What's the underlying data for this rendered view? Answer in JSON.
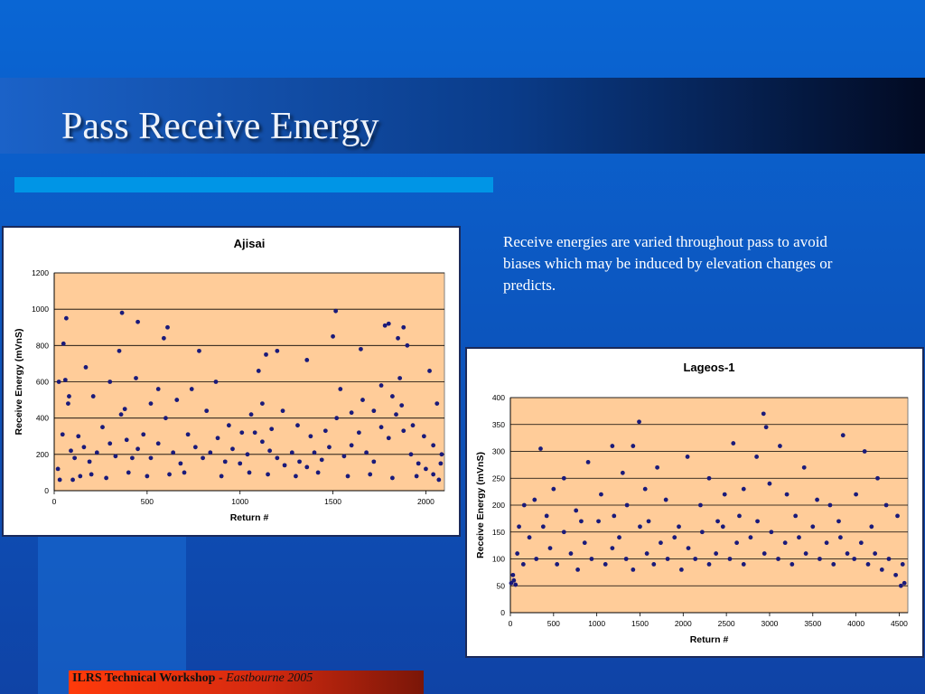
{
  "slide": {
    "title": "Pass Receive Energy",
    "body": "Receive energies are varied throughout pass to avoid biases which may be induced by elevation changes or predicts.",
    "footer_bold": "ILRS Technical Workshop - ",
    "footer_italic": "Eastbourne 2005"
  },
  "colors": {
    "background": "#1056b8",
    "plot_area": "#ffcc99",
    "marker": "#1a1a7a",
    "accent_bar": "#0095e6",
    "footer": "#e8300c"
  },
  "chart_data": [
    {
      "id": "ajisai",
      "type": "scatter",
      "title": "Ajisai",
      "xlabel": "Return #",
      "ylabel": "Receive Energy (mVnS)",
      "xlim": [
        0,
        2100
      ],
      "ylim": [
        0,
        1200
      ],
      "xticks": [
        0,
        500,
        1000,
        1500,
        2000
      ],
      "yticks": [
        0,
        200,
        400,
        600,
        800,
        1000,
        1200
      ],
      "grid": "horizontal",
      "legend": "none",
      "series": [
        {
          "points_note": "",
          "points": [
            [
              20,
              120
            ],
            [
              45,
              310
            ],
            [
              60,
              610
            ],
            [
              75,
              480
            ],
            [
              90,
              220
            ],
            [
              110,
              180
            ],
            [
              130,
              300
            ],
            [
              160,
              240
            ],
            [
              190,
              160
            ],
            [
              230,
              210
            ],
            [
              260,
              350
            ],
            [
              300,
              260
            ],
            [
              330,
              190
            ],
            [
              360,
              420
            ],
            [
              390,
              280
            ],
            [
              420,
              180
            ],
            [
              450,
              230
            ],
            [
              480,
              310
            ],
            [
              520,
              180
            ],
            [
              560,
              260
            ],
            [
              600,
              400
            ],
            [
              640,
              210
            ],
            [
              680,
              150
            ],
            [
              720,
              310
            ],
            [
              760,
              240
            ],
            [
              800,
              180
            ],
            [
              840,
              210
            ],
            [
              880,
              290
            ],
            [
              920,
              160
            ],
            [
              960,
              230
            ],
            [
              1000,
              150
            ],
            [
              1040,
              200
            ],
            [
              1080,
              320
            ],
            [
              1120,
              270
            ],
            [
              1160,
              220
            ],
            [
              1200,
              180
            ],
            [
              1240,
              140
            ],
            [
              1280,
              210
            ],
            [
              1320,
              160
            ],
            [
              1360,
              130
            ],
            [
              1400,
              210
            ],
            [
              1440,
              170
            ],
            [
              1480,
              240
            ],
            [
              1520,
              400
            ],
            [
              1560,
              190
            ],
            [
              1600,
              250
            ],
            [
              1640,
              320
            ],
            [
              1680,
              210
            ],
            [
              1720,
              160
            ],
            [
              1760,
              350
            ],
            [
              1800,
              290
            ],
            [
              1840,
              420
            ],
            [
              1880,
              330
            ],
            [
              1920,
              200
            ],
            [
              1960,
              150
            ],
            [
              2000,
              120
            ],
            [
              2040,
              90
            ],
            [
              2080,
              150
            ],
            [
              25,
              600
            ],
            [
              50,
              810
            ],
            [
              65,
              950
            ],
            [
              170,
              680
            ],
            [
              350,
              770
            ],
            [
              365,
              980
            ],
            [
              450,
              930
            ],
            [
              590,
              840
            ],
            [
              610,
              900
            ],
            [
              780,
              770
            ],
            [
              1100,
              660
            ],
            [
              1140,
              750
            ],
            [
              1200,
              770
            ],
            [
              1360,
              720
            ],
            [
              1500,
              850
            ],
            [
              1515,
              990
            ],
            [
              1650,
              780
            ],
            [
              1780,
              910
            ],
            [
              1800,
              920
            ],
            [
              1850,
              840
            ],
            [
              1860,
              620
            ],
            [
              1880,
              900
            ],
            [
              1900,
              800
            ],
            [
              2020,
              660
            ],
            [
              2060,
              480
            ],
            [
              30,
              60
            ],
            [
              100,
              60
            ],
            [
              140,
              80
            ],
            [
              200,
              90
            ],
            [
              280,
              70
            ],
            [
              400,
              100
            ],
            [
              500,
              80
            ],
            [
              620,
              90
            ],
            [
              700,
              100
            ],
            [
              900,
              80
            ],
            [
              1050,
              100
            ],
            [
              1150,
              90
            ],
            [
              1300,
              80
            ],
            [
              1420,
              100
            ],
            [
              1580,
              80
            ],
            [
              1700,
              90
            ],
            [
              1820,
              70
            ],
            [
              1950,
              80
            ],
            [
              2070,
              60
            ],
            [
              80,
              520
            ],
            [
              210,
              520
            ],
            [
              300,
              600
            ],
            [
              380,
              450
            ],
            [
              440,
              620
            ],
            [
              520,
              480
            ],
            [
              560,
              560
            ],
            [
              660,
              500
            ],
            [
              740,
              560
            ],
            [
              820,
              440
            ],
            [
              870,
              600
            ],
            [
              940,
              360
            ],
            [
              1010,
              320
            ],
            [
              1060,
              420
            ],
            [
              1120,
              480
            ],
            [
              1170,
              340
            ],
            [
              1230,
              440
            ],
            [
              1310,
              360
            ],
            [
              1380,
              300
            ],
            [
              1460,
              330
            ],
            [
              1540,
              560
            ],
            [
              1600,
              430
            ],
            [
              1660,
              500
            ],
            [
              1720,
              440
            ],
            [
              1760,
              580
            ],
            [
              1820,
              520
            ],
            [
              1870,
              470
            ],
            [
              1930,
              360
            ],
            [
              1990,
              300
            ],
            [
              2040,
              250
            ],
            [
              2085,
              200
            ]
          ]
        }
      ]
    },
    {
      "id": "lageos1",
      "type": "scatter",
      "title": "Lageos-1",
      "xlabel": "Return #",
      "ylabel": "Receive Energy (mVnS)",
      "xlim": [
        0,
        4600
      ],
      "ylim": [
        0,
        400
      ],
      "xticks": [
        0,
        500,
        1000,
        1500,
        2000,
        2500,
        3000,
        3500,
        4000,
        4500
      ],
      "yticks": [
        0,
        50,
        100,
        150,
        200,
        250,
        300,
        350,
        400
      ],
      "grid": "horizontal",
      "legend": "none",
      "series": [
        {
          "points_note": "",
          "points": [
            [
              30,
              70
            ],
            [
              80,
              110
            ],
            [
              150,
              90
            ],
            [
              220,
              140
            ],
            [
              300,
              100
            ],
            [
              380,
              160
            ],
            [
              460,
              120
            ],
            [
              540,
              90
            ],
            [
              620,
              150
            ],
            [
              700,
              110
            ],
            [
              780,
              80
            ],
            [
              860,
              130
            ],
            [
              940,
              100
            ],
            [
              1020,
              170
            ],
            [
              1100,
              90
            ],
            [
              1180,
              120
            ],
            [
              1260,
              140
            ],
            [
              1340,
              100
            ],
            [
              1420,
              80
            ],
            [
              1500,
              160
            ],
            [
              1580,
              110
            ],
            [
              1660,
              90
            ],
            [
              1740,
              130
            ],
            [
              1820,
              100
            ],
            [
              1900,
              140
            ],
            [
              1980,
              80
            ],
            [
              2060,
              120
            ],
            [
              2140,
              100
            ],
            [
              2220,
              150
            ],
            [
              2300,
              90
            ],
            [
              2380,
              110
            ],
            [
              2460,
              160
            ],
            [
              2540,
              100
            ],
            [
              2620,
              130
            ],
            [
              2700,
              90
            ],
            [
              2780,
              140
            ],
            [
              2860,
              170
            ],
            [
              2940,
              110
            ],
            [
              3020,
              150
            ],
            [
              3100,
              100
            ],
            [
              3180,
              130
            ],
            [
              3260,
              90
            ],
            [
              3340,
              140
            ],
            [
              3420,
              110
            ],
            [
              3500,
              160
            ],
            [
              3580,
              100
            ],
            [
              3660,
              130
            ],
            [
              3740,
              90
            ],
            [
              3820,
              140
            ],
            [
              3900,
              110
            ],
            [
              3980,
              100
            ],
            [
              4060,
              130
            ],
            [
              4140,
              90
            ],
            [
              4220,
              110
            ],
            [
              4300,
              80
            ],
            [
              4380,
              100
            ],
            [
              4460,
              70
            ],
            [
              4540,
              90
            ],
            [
              350,
              305
            ],
            [
              1180,
              310
            ],
            [
              1420,
              310
            ],
            [
              1490,
              355
            ],
            [
              2580,
              315
            ],
            [
              2930,
              370
            ],
            [
              2960,
              345
            ],
            [
              3120,
              310
            ],
            [
              3850,
              330
            ],
            [
              4100,
              300
            ],
            [
              10,
              55
            ],
            [
              40,
              60
            ],
            [
              60,
              52
            ],
            [
              4520,
              50
            ],
            [
              4560,
              55
            ],
            [
              500,
              230
            ],
            [
              620,
              250
            ],
            [
              900,
              280
            ],
            [
              1300,
              260
            ],
            [
              1700,
              270
            ],
            [
              2050,
              290
            ],
            [
              2300,
              250
            ],
            [
              2850,
              290
            ],
            [
              3400,
              270
            ],
            [
              4250,
              250
            ],
            [
              160,
              200
            ],
            [
              280,
              210
            ],
            [
              760,
              190
            ],
            [
              1050,
              220
            ],
            [
              1350,
              200
            ],
            [
              1560,
              230
            ],
            [
              1800,
              210
            ],
            [
              2200,
              200
            ],
            [
              2480,
              220
            ],
            [
              2700,
              230
            ],
            [
              3000,
              240
            ],
            [
              3200,
              220
            ],
            [
              3550,
              210
            ],
            [
              3700,
              200
            ],
            [
              4000,
              220
            ],
            [
              4350,
              200
            ],
            [
              4480,
              180
            ],
            [
              100,
              160
            ],
            [
              420,
              180
            ],
            [
              820,
              170
            ],
            [
              1200,
              180
            ],
            [
              1600,
              170
            ],
            [
              1950,
              160
            ],
            [
              2400,
              170
            ],
            [
              2650,
              180
            ],
            [
              3300,
              180
            ],
            [
              3800,
              170
            ],
            [
              4180,
              160
            ]
          ]
        }
      ]
    }
  ]
}
